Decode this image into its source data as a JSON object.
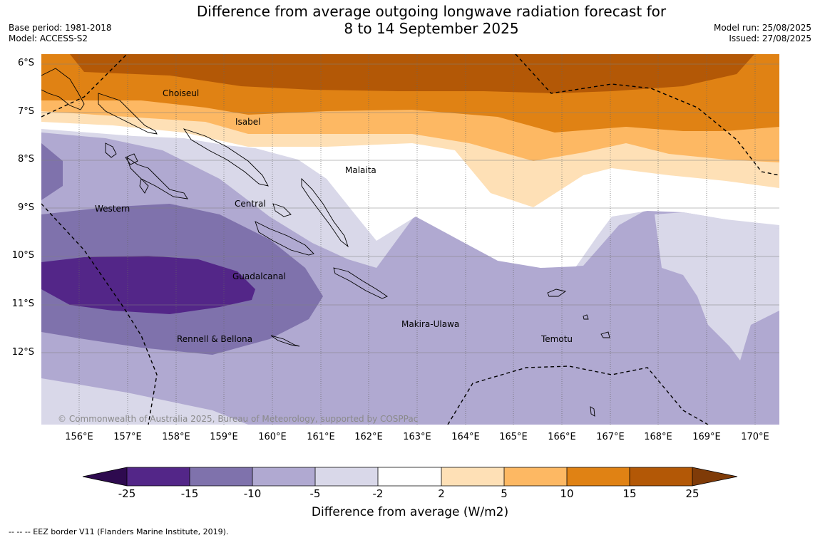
{
  "header": {
    "title_line1": "Difference from average outgoing longwave radiation forecast for",
    "title_line2": "8 to 14 September 2025",
    "base_period": "Base period: 1981-2018",
    "model": "Model: ACCESS-S2",
    "model_run": "Model run: 25/08/2025",
    "issued": "Issued: 27/08/2025"
  },
  "map": {
    "latitude_labels": [
      "6°S",
      "7°S",
      "8°S",
      "9°S",
      "10°S",
      "11°S",
      "12°S"
    ],
    "longitude_labels": [
      "156°E",
      "157°E",
      "158°E",
      "159°E",
      "160°E",
      "161°E",
      "162°E",
      "163°E",
      "164°E",
      "165°E",
      "166°E",
      "167°E",
      "168°E",
      "169°E",
      "170°E"
    ],
    "regions": [
      "Choiseul",
      "Isabel",
      "Malaita",
      "Western",
      "Central",
      "Guadalcanal",
      "Makira-Ulawa",
      "Temotu",
      "Rennell & Bellona"
    ],
    "copyright": "© Commonwealth of Australia 2025, Bureau of Meteorology, supported by COSPPac"
  },
  "colorbar": {
    "title": "Difference from average (W/m2)",
    "ticks": [
      "-25",
      "-15",
      "-10",
      "-5",
      "-2",
      "2",
      "5",
      "10",
      "15",
      "25"
    ],
    "colors": [
      "#2e0a4f",
      "#532688",
      "#7f72ac",
      "#b0a9d1",
      "#d9d8e9",
      "#ffffff",
      "#fee0b6",
      "#fdb863",
      "#e08214",
      "#b35806",
      "#7f3b08"
    ]
  },
  "footer": {
    "legend_text": "--  --  -- EEZ border V11 (Flanders Marine Institute, 2019)."
  }
}
